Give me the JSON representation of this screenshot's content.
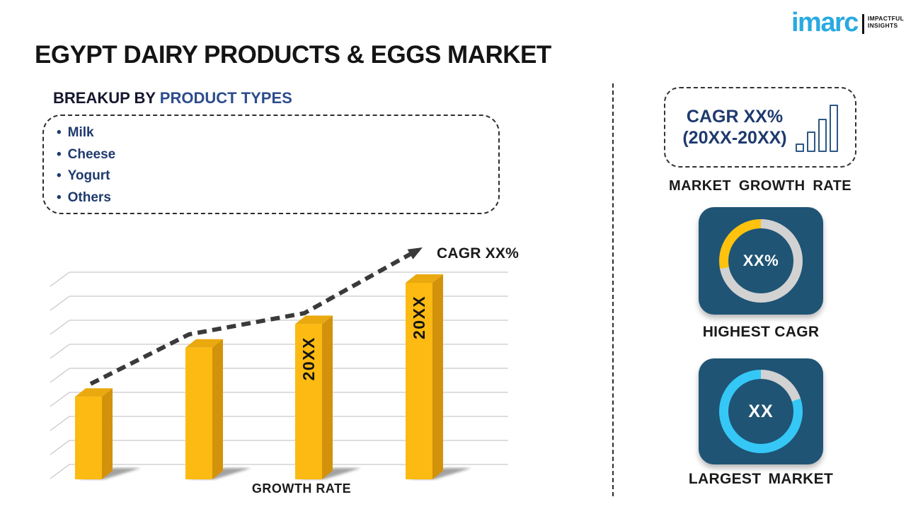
{
  "brand": {
    "logo_text": "imarc",
    "tagline_line1": "IMPACTFUL",
    "tagline_line2": "INSIGHTS",
    "logo_color": "#29AAE1"
  },
  "title": "EGYPT DAIRY PRODUCTS & EGGS MARKET",
  "breakup": {
    "heading_prefix": "BREAKUP BY ",
    "heading_highlight": "PRODUCT TYPES",
    "items": [
      "Milk",
      "Cheese",
      "Yogurt",
      "Others"
    ]
  },
  "chart_data": {
    "type": "bar",
    "title": "",
    "xlabel": "GROWTH RATE",
    "ylabel": "",
    "categories": [
      "",
      "",
      "20XX",
      "20XX"
    ],
    "values": [
      42,
      67,
      79,
      100
    ],
    "values_are_relative": true,
    "value_note": "actual values masked; bar heights shown as % of tallest bar",
    "trend_label": "CAGR XX%",
    "trend": "dashed rising arrow over bars",
    "gridlines": 9,
    "legend": "none",
    "bar_color_front": "#FCBA12",
    "bar_color_top": "#EAA90E",
    "bar_color_side": "#D3920B"
  },
  "sidebar": {
    "growth_box": {
      "line1": "CAGR XX%",
      "line2": "(20XX-20XX)",
      "icon": "bar-chart-icon"
    },
    "growth_caption": "MARKET GROWTH RATE",
    "highest_cagr": {
      "value": "XX%",
      "caption": "HIGHEST CAGR",
      "arcs": [
        {
          "color": "#D2D2D2",
          "start": 0,
          "end": 259
        },
        {
          "color": "#FFC20D",
          "start": 259,
          "end": 360
        }
      ]
    },
    "largest_market": {
      "value": "XX",
      "caption": "LARGEST MARKET",
      "arcs": [
        {
          "color": "#D2D2D2",
          "start": 0,
          "end": 72
        },
        {
          "color": "#35C8F6",
          "start": 72,
          "end": 360
        }
      ]
    },
    "panel_color": "#1F5475"
  }
}
